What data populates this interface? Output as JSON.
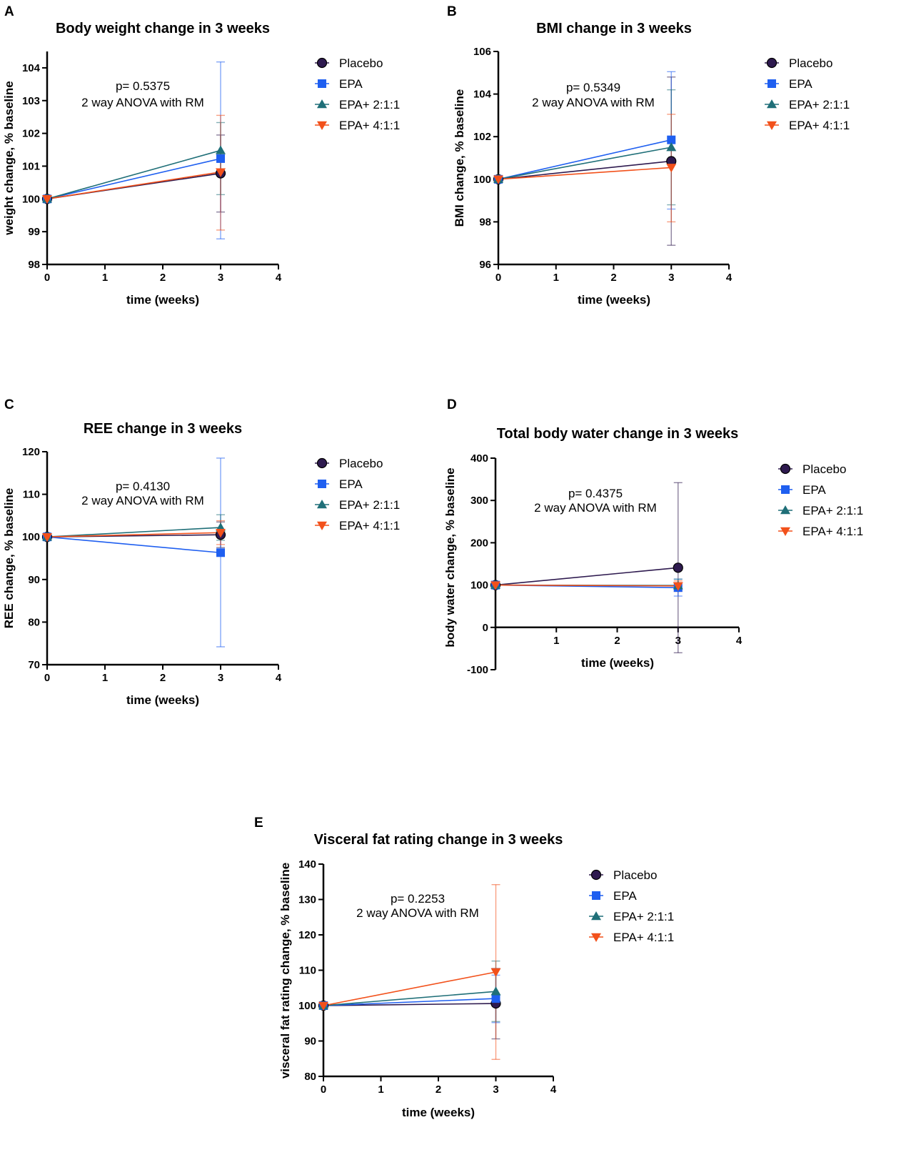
{
  "colors": {
    "placebo": "#2e1a4f",
    "epa": "#1f5ff0",
    "epa_211": "#1f6f78",
    "epa_411": "#f2511b"
  },
  "chart_data": [
    {
      "letter": "A",
      "type": "line",
      "title": "Body weight change in 3 weeks",
      "xlabel": "time (weeks)",
      "ylabel": "weight change, % baseline",
      "xlim": [
        0,
        4
      ],
      "ylim": [
        98,
        104.5
      ],
      "xticks": [
        0,
        1,
        2,
        3,
        4
      ],
      "yticks": [
        98,
        99,
        100,
        101,
        102,
        103,
        104
      ],
      "annotation": [
        "p= 0.5375",
        "2 way ANOVA with RM"
      ],
      "legend_labels": [
        "Placebo",
        "EPA",
        "EPA+ 2:1:1",
        "EPA+ 4:1:1"
      ],
      "series": [
        {
          "key": "placebo",
          "marker": "circle",
          "x": [
            0,
            3
          ],
          "y": [
            100,
            100.78
          ],
          "err": [
            [
              3,
              99.6,
              101.95
            ]
          ]
        },
        {
          "key": "epa",
          "marker": "square",
          "x": [
            0,
            3
          ],
          "y": [
            100,
            101.23
          ],
          "err": [
            [
              3,
              98.78,
              104.18
            ]
          ]
        },
        {
          "key": "epa_211",
          "marker": "triangle-up",
          "x": [
            0,
            3
          ],
          "y": [
            100,
            101.48
          ],
          "err": [
            [
              3,
              100.13,
              102.33
            ]
          ]
        },
        {
          "key": "epa_411",
          "marker": "triangle-down",
          "x": [
            0,
            3
          ],
          "y": [
            100,
            100.82
          ],
          "err": [
            [
              3,
              99.05,
              102.55
            ]
          ]
        }
      ]
    },
    {
      "letter": "B",
      "type": "line",
      "title": "BMI change in 3 weeks",
      "xlabel": "time (weeks)",
      "ylabel": "BMI change, % baseline",
      "xlim": [
        0,
        4
      ],
      "ylim": [
        96,
        106
      ],
      "xticks": [
        0,
        1,
        2,
        3,
        4
      ],
      "yticks": [
        96,
        98,
        100,
        102,
        104,
        106
      ],
      "annotation": [
        "p= 0.5349",
        "2 way ANOVA with RM"
      ],
      "legend_labels": [
        "Placebo",
        "EPA",
        "EPA+ 2:1:1",
        "EPA+ 4:1:1"
      ],
      "series": [
        {
          "key": "placebo",
          "marker": "circle",
          "x": [
            0,
            3
          ],
          "y": [
            100,
            100.85
          ],
          "err": [
            [
              3,
              96.9,
              104.8
            ]
          ]
        },
        {
          "key": "epa",
          "marker": "square",
          "x": [
            0,
            3
          ],
          "y": [
            100,
            101.85
          ],
          "err": [
            [
              3,
              98.6,
              105.05
            ]
          ]
        },
        {
          "key": "epa_211",
          "marker": "triangle-up",
          "x": [
            0,
            3
          ],
          "y": [
            100,
            101.5
          ],
          "err": [
            [
              3,
              98.8,
              104.2
            ]
          ]
        },
        {
          "key": "epa_411",
          "marker": "triangle-down",
          "x": [
            0,
            3
          ],
          "y": [
            100,
            100.55
          ],
          "err": [
            [
              3,
              98.0,
              103.05
            ]
          ]
        }
      ]
    },
    {
      "letter": "C",
      "type": "line",
      "title": "REE change in 3 weeks",
      "xlabel": "time (weeks)",
      "ylabel": "REE change, % baseline",
      "xlim": [
        0,
        4
      ],
      "ylim": [
        70,
        120
      ],
      "xticks": [
        0,
        1,
        2,
        3,
        4
      ],
      "yticks": [
        70,
        80,
        90,
        100,
        110,
        120
      ],
      "annotation": [
        "p= 0.4130",
        "2 way ANOVA with RM"
      ],
      "legend_labels": [
        "Placebo",
        "EPA",
        "EPA+ 2:1:1",
        "EPA+ 4:1:1"
      ],
      "series": [
        {
          "key": "placebo",
          "marker": "circle",
          "x": [
            0,
            3
          ],
          "y": [
            100,
            100.5
          ],
          "err": [
            [
              3,
              97.5,
              103.5
            ]
          ]
        },
        {
          "key": "epa",
          "marker": "square",
          "x": [
            0,
            3
          ],
          "y": [
            100,
            96.3
          ],
          "err": [
            [
              3,
              74.2,
              118.5
            ]
          ]
        },
        {
          "key": "epa_211",
          "marker": "triangle-up",
          "x": [
            0,
            3
          ],
          "y": [
            100,
            102.2
          ],
          "err": [
            [
              3,
              99.2,
              105.2
            ]
          ]
        },
        {
          "key": "epa_411",
          "marker": "triangle-down",
          "x": [
            0,
            3
          ],
          "y": [
            100,
            101.0
          ],
          "err": [
            [
              3,
              98.2,
              103.8
            ]
          ]
        }
      ]
    },
    {
      "letter": "D",
      "type": "line",
      "title": "Total body water change in 3 weeks",
      "xlabel": "time (weeks)",
      "ylabel": "body water change, % baseline",
      "xlim": [
        0,
        4
      ],
      "ylim": [
        -100,
        400
      ],
      "xticks": [
        1,
        2,
        3,
        4
      ],
      "yticks": [
        -100,
        0,
        100,
        200,
        300,
        400
      ],
      "x_axis_at_y": 0,
      "annotation": [
        "p= 0.4375",
        "2 way ANOVA with RM"
      ],
      "legend_labels": [
        "Placebo",
        "EPA",
        "EPA+ 2:1:1",
        "EPA+ 4:1:1"
      ],
      "series": [
        {
          "key": "placebo",
          "marker": "circle",
          "x": [
            0,
            3
          ],
          "y": [
            100,
            141
          ],
          "err": [
            [
              3,
              -60,
              342
            ]
          ]
        },
        {
          "key": "epa",
          "marker": "square",
          "x": [
            0,
            3
          ],
          "y": [
            100,
            94
          ],
          "err": [
            [
              3,
              74,
              114
            ]
          ]
        },
        {
          "key": "epa_211",
          "marker": "triangle-up",
          "x": [
            0,
            3
          ],
          "y": [
            100,
            99
          ],
          "err": [
            [
              3,
              86,
              114
            ]
          ]
        },
        {
          "key": "epa_411",
          "marker": "triangle-down",
          "x": [
            0,
            3
          ],
          "y": [
            100,
            98
          ],
          "err": [
            [
              3,
              85,
              110
            ]
          ]
        }
      ]
    },
    {
      "letter": "E",
      "type": "line",
      "title": "Visceral fat rating change in 3 weeks",
      "xlabel": "time (weeks)",
      "ylabel": "visceral fat rating change, % baseline",
      "xlim": [
        0,
        4
      ],
      "ylim": [
        80,
        140
      ],
      "xticks": [
        0,
        1,
        2,
        3,
        4
      ],
      "yticks": [
        80,
        90,
        100,
        110,
        120,
        130,
        140
      ],
      "annotation": [
        "p= 0.2253",
        "2 way ANOVA with RM"
      ],
      "legend_labels": [
        "Placebo",
        "EPA",
        "EPA+ 2:1:1",
        "EPA+ 4:1:1"
      ],
      "series": [
        {
          "key": "placebo",
          "marker": "circle",
          "x": [
            0,
            3
          ],
          "y": [
            100,
            100.6
          ],
          "err": [
            [
              3,
              90.6,
              110.5
            ]
          ]
        },
        {
          "key": "epa",
          "marker": "square",
          "x": [
            0,
            3
          ],
          "y": [
            100,
            102
          ],
          "err": [
            [
              3,
              95.2,
              108.6
            ]
          ]
        },
        {
          "key": "epa_211",
          "marker": "triangle-up",
          "x": [
            0,
            3
          ],
          "y": [
            100,
            104
          ],
          "err": [
            [
              3,
              95.5,
              112.6
            ]
          ]
        },
        {
          "key": "epa_411",
          "marker": "triangle-down",
          "x": [
            0,
            3
          ],
          "y": [
            100,
            109.5
          ],
          "err": [
            [
              3,
              84.8,
              134.2
            ]
          ]
        }
      ]
    }
  ]
}
